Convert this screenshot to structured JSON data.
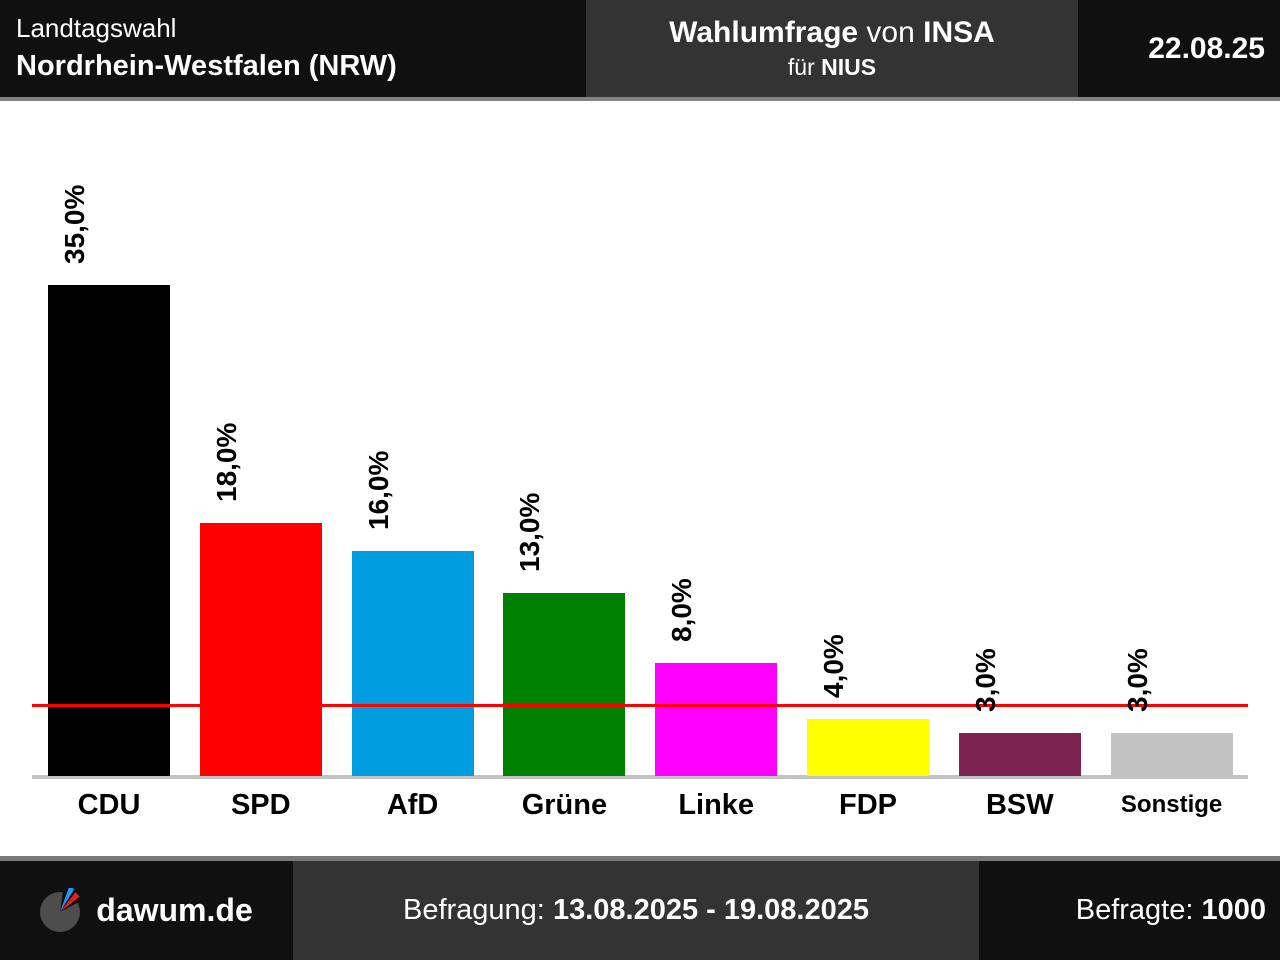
{
  "header": {
    "left": {
      "line1": "Landtagswahl",
      "line2": "Nordrhein-Westfalen (NRW)"
    },
    "center": {
      "title_bold1": "Wahlumfrage",
      "title_normal": "von",
      "title_bold2": "INSA",
      "sub_normal": "für",
      "sub_bold": "NIUS"
    },
    "date": "22.08.25"
  },
  "chart_data": {
    "type": "bar",
    "title": "Wahlumfrage von INSA für NIUS — Landtagswahl Nordrhein-Westfalen (NRW)",
    "categories": [
      "CDU",
      "SPD",
      "AfD",
      "Grüne",
      "Linke",
      "FDP",
      "BSW",
      "Sonstige"
    ],
    "values": [
      35.0,
      18.0,
      16.0,
      13.0,
      8.0,
      4.0,
      3.0,
      3.0
    ],
    "value_labels": [
      "35,0%",
      "18,0%",
      "16,0%",
      "13,0%",
      "8,0%",
      "4,0%",
      "3,0%",
      "3,0%"
    ],
    "bar_colors": [
      "#000000",
      "#ff0000",
      "#009ee0",
      "#008000",
      "#ff00ff",
      "#ffff00",
      "#7d2350",
      "#c2c2c2"
    ],
    "threshold_line": {
      "value": 5.0,
      "color": "#ff0000"
    },
    "ylim": [
      0,
      48
    ],
    "xlabel": "",
    "ylabel": "",
    "grid": false,
    "legend": false
  },
  "footer": {
    "brand": "dawum.de",
    "survey_label": "Befragung: ",
    "survey_period": "13.08.2025 - 19.08.2025",
    "respondents_label": "Befragte: ",
    "respondents_value": "1000"
  },
  "icons": {
    "brand_logo": "pie-chart-logo-icon"
  },
  "colors": {
    "header_dark": "#101010",
    "header_mid": "#333333",
    "divider": "#828282",
    "axis": "#c2c2c2",
    "threshold": "#ff0000"
  }
}
